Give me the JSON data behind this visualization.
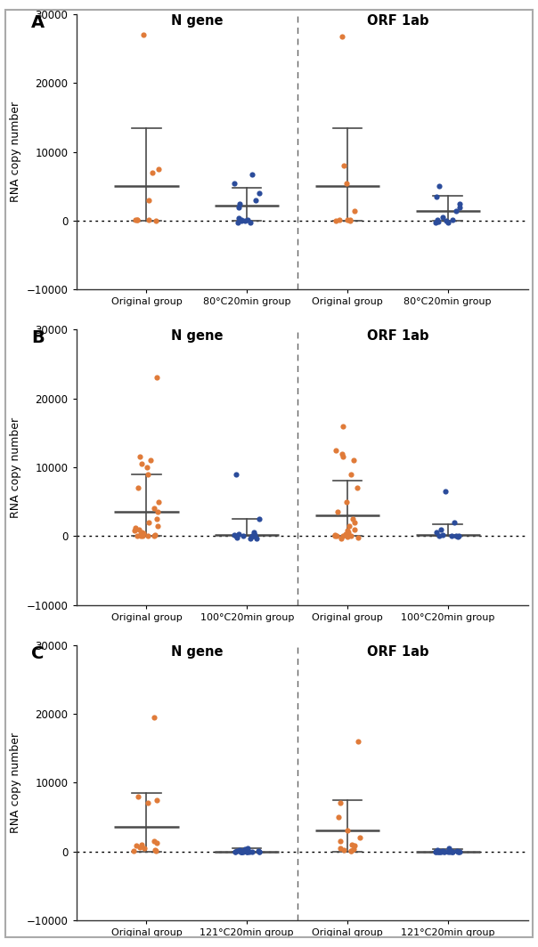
{
  "panels": [
    {
      "label": "A",
      "xlabel_groups": [
        "Original group",
        "80°C20min group",
        "Original group",
        "80°C20min group"
      ],
      "N_gene_original": [
        27000,
        7500,
        7000,
        3000,
        200,
        100,
        100,
        50,
        200
      ],
      "N_gene_treated": [
        6800,
        5500,
        4000,
        3000,
        2500,
        2000,
        400,
        200,
        100,
        50,
        0,
        -200,
        -300
      ],
      "ORF_original": [
        26800,
        8000,
        5500,
        1500,
        200,
        100,
        100,
        50,
        50
      ],
      "ORF_treated": [
        5000,
        3500,
        2500,
        2000,
        1500,
        500,
        200,
        100,
        0,
        -100,
        -200,
        -300
      ],
      "N_orig_mean": 5000,
      "N_orig_err_lo": 5000,
      "N_orig_err_hi": 8500,
      "N_treat_mean": 2200,
      "N_treat_err_lo": 2200,
      "N_treat_err_hi": 2600,
      "ORF_orig_mean": 5000,
      "ORF_orig_err_lo": 5000,
      "ORF_orig_err_hi": 8500,
      "ORF_treat_mean": 1400,
      "ORF_treat_err_lo": 1400,
      "ORF_treat_err_hi": 2200
    },
    {
      "label": "B",
      "xlabel_groups": [
        "Original group",
        "100°C20min group",
        "Original group",
        "100°C20min group"
      ],
      "N_gene_original": [
        23000,
        11500,
        11000,
        10500,
        10000,
        9000,
        7000,
        5000,
        4000,
        3500,
        2500,
        2000,
        1500,
        1200,
        1000,
        800,
        600,
        400,
        300,
        200,
        100,
        50,
        50,
        50,
        0
      ],
      "N_gene_treated": [
        9000,
        2500,
        500,
        300,
        200,
        150,
        100,
        50,
        50,
        0,
        0,
        -200,
        -300,
        -400
      ],
      "ORF_original": [
        16000,
        12500,
        12000,
        11500,
        11000,
        9000,
        7000,
        5000,
        3500,
        2500,
        2000,
        1500,
        1000,
        800,
        500,
        300,
        200,
        100,
        50,
        50,
        0,
        -100,
        -200,
        -300
      ],
      "ORF_treated": [
        6500,
        2000,
        1000,
        500,
        200,
        100,
        50,
        0,
        0,
        -100
      ],
      "N_orig_mean": 3500,
      "N_orig_err_lo": 3500,
      "N_orig_err_hi": 5500,
      "N_treat_mean": 200,
      "N_treat_err_lo": 200,
      "N_treat_err_hi": 2300,
      "ORF_orig_mean": 3000,
      "ORF_orig_err_lo": 3000,
      "ORF_orig_err_hi": 5000,
      "ORF_treat_mean": 200,
      "ORF_treat_err_lo": 200,
      "ORF_treat_err_hi": 1500
    },
    {
      "label": "C",
      "xlabel_groups": [
        "Original group",
        "121°C20min group",
        "Original group",
        "121°C20min group"
      ],
      "N_gene_original": [
        19500,
        8000,
        7500,
        7000,
        1500,
        1200,
        1000,
        800,
        600,
        400,
        200,
        100,
        50
      ],
      "N_gene_treated": [
        500,
        300,
        200,
        100,
        50,
        50,
        0,
        0,
        0,
        0,
        0,
        0,
        0,
        0,
        0,
        0,
        0,
        0,
        0,
        0,
        0
      ],
      "ORF_original": [
        16000,
        7000,
        5000,
        3000,
        2000,
        1500,
        1000,
        800,
        500,
        300,
        200,
        100,
        50
      ],
      "ORF_treated": [
        500,
        200,
        100,
        50,
        0,
        0,
        0,
        0,
        0,
        0,
        0,
        0,
        0,
        0,
        0,
        0,
        0,
        0,
        0,
        0,
        0
      ],
      "N_orig_mean": 3500,
      "N_orig_err_lo": 3500,
      "N_orig_err_hi": 5000,
      "N_treat_mean": 0,
      "N_treat_err_lo": 0,
      "N_treat_err_hi": 400,
      "ORF_orig_mean": 3000,
      "ORF_orig_err_lo": 3000,
      "ORF_orig_err_hi": 4500,
      "ORF_treat_mean": 0,
      "ORF_treat_err_lo": 0,
      "ORF_treat_err_hi": 300
    }
  ],
  "orange_color": "#E07B39",
  "blue_color": "#2B4C9B",
  "error_color": "#4a4a4a",
  "ylim": [
    -10000,
    30000
  ],
  "yticks": [
    -10000,
    0,
    10000,
    20000,
    30000
  ],
  "ylabel": "RNA copy number",
  "background_color": "#ffffff",
  "fig_background": "#ffffff",
  "border_color": "#cccccc"
}
